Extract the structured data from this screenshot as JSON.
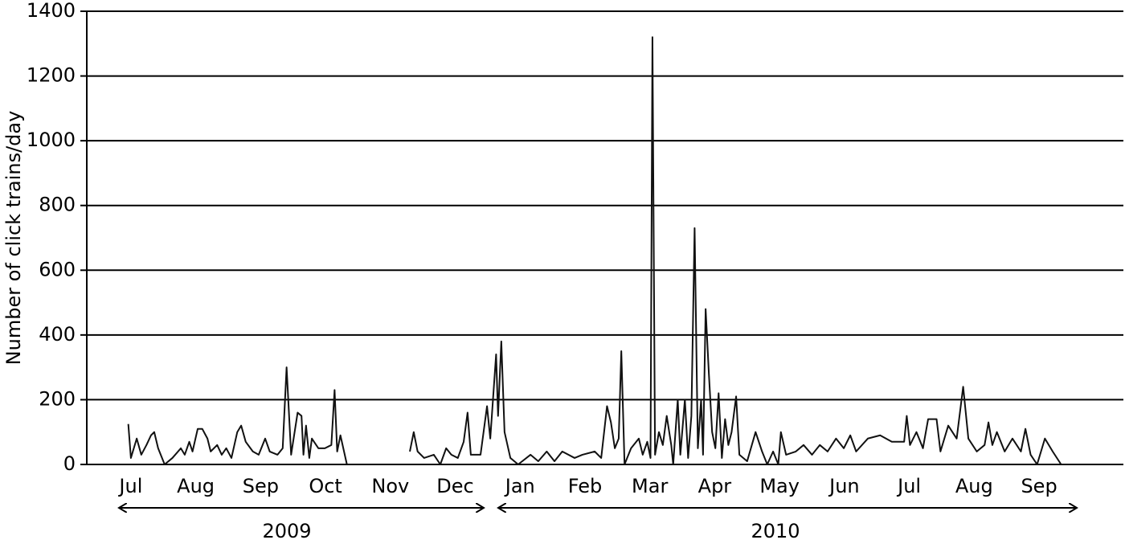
{
  "chart_data": {
    "type": "line",
    "y_label": "Number of click trains/day",
    "annotations": [
      "2009",
      "2010"
    ],
    "xlim": [
      -0.68,
      15.3
    ],
    "xticks": [
      {
        "value": 0,
        "label": "Jul"
      },
      {
        "value": 1,
        "label": "Aug"
      },
      {
        "value": 2,
        "label": "Sep"
      },
      {
        "value": 3,
        "label": "Oct"
      },
      {
        "value": 4,
        "label": "Nov"
      },
      {
        "value": 5,
        "label": "Dec"
      },
      {
        "value": 6,
        "label": "Jan"
      },
      {
        "value": 7,
        "label": "Feb"
      },
      {
        "value": 8,
        "label": "Mar"
      },
      {
        "value": 9,
        "label": "Apr"
      },
      {
        "value": 10,
        "label": "May"
      },
      {
        "value": 11,
        "label": "Jun"
      },
      {
        "value": 12,
        "label": "Jul"
      },
      {
        "value": 13,
        "label": "Aug"
      },
      {
        "value": 14,
        "label": "Sep"
      }
    ],
    "ylim": [
      0,
      1400
    ],
    "yticks": [
      0,
      200,
      400,
      600,
      800,
      1000,
      1200,
      1400
    ],
    "grid": true,
    "x": [
      -0.04,
      0,
      0.09,
      0.16,
      0.24,
      0.31,
      0.36,
      0.42,
      0.52,
      0.64,
      0.77,
      0.83,
      0.9,
      0.95,
      1.03,
      1.1,
      1.18,
      1.23,
      1.33,
      1.4,
      1.47,
      1.55,
      1.64,
      1.7,
      1.77,
      1.88,
      1.97,
      2.07,
      2.14,
      2.26,
      2.34,
      2.4,
      2.47,
      2.57,
      2.63,
      2.66,
      2.7,
      2.75,
      2.79,
      2.89,
      2.99,
      3.09,
      3.14,
      3.18,
      3.23,
      3.33,
      3.8,
      4.3,
      4.36,
      4.42,
      4.52,
      4.67,
      4.77,
      4.86,
      4.94,
      5.04,
      5.13,
      5.19,
      5.24,
      5.39,
      5.49,
      5.54,
      5.63,
      5.66,
      5.71,
      5.76,
      5.85,
      5.97,
      6.16,
      6.28,
      6.41,
      6.53,
      6.65,
      6.84,
      6.96,
      7.15,
      7.25,
      7.34,
      7.4,
      7.46,
      7.52,
      7.56,
      7.61,
      7.71,
      7.83,
      7.89,
      7.96,
      8.01,
      8.04,
      8.08,
      8.14,
      8.2,
      8.26,
      8.33,
      8.36,
      8.43,
      8.47,
      8.54,
      8.59,
      8.64,
      8.69,
      8.74,
      8.79,
      8.82,
      8.86,
      8.91,
      8.96,
      9.01,
      9.06,
      9.11,
      9.16,
      9.21,
      9.26,
      9.33,
      9.38,
      9.5,
      9.63,
      9.73,
      9.81,
      9.9,
      9.98,
      10.02,
      10.1,
      10.25,
      10.37,
      10.5,
      10.62,
      10.74,
      10.87,
      10.99,
      11.09,
      11.18,
      11.36,
      11.55,
      11.73,
      11.92,
      11.96,
      12.01,
      12.11,
      12.21,
      12.29,
      12.42,
      12.48,
      12.6,
      12.73,
      12.83,
      12.91,
      13.04,
      13.16,
      13.22,
      13.28,
      13.35,
      13.47,
      13.59,
      13.72,
      13.79,
      13.87,
      13.97,
      14.09,
      14.21,
      14.34
    ],
    "series": [
      {
        "color": "#111111",
        "values": [
          125,
          20,
          80,
          30,
          60,
          90,
          100,
          50,
          0,
          20,
          50,
          30,
          70,
          40,
          110,
          110,
          80,
          40,
          60,
          30,
          50,
          20,
          100,
          120,
          70,
          40,
          30,
          80,
          40,
          30,
          50,
          300,
          30,
          160,
          150,
          30,
          120,
          20,
          80,
          50,
          50,
          60,
          230,
          40,
          90,
          0,
          null,
          40,
          100,
          40,
          20,
          30,
          0,
          50,
          30,
          20,
          70,
          160,
          30,
          30,
          180,
          80,
          340,
          150,
          380,
          100,
          20,
          0,
          30,
          10,
          40,
          10,
          40,
          20,
          30,
          40,
          20,
          180,
          130,
          50,
          80,
          350,
          0,
          50,
          80,
          30,
          70,
          20,
          1320,
          30,
          100,
          60,
          150,
          60,
          0,
          200,
          30,
          200,
          20,
          150,
          730,
          50,
          200,
          30,
          480,
          280,
          100,
          50,
          220,
          20,
          140,
          60,
          100,
          210,
          30,
          10,
          100,
          40,
          0,
          40,
          0,
          100,
          30,
          40,
          60,
          30,
          60,
          40,
          80,
          50,
          90,
          40,
          80,
          90,
          70,
          70,
          150,
          60,
          100,
          50,
          140,
          140,
          40,
          120,
          80,
          240,
          80,
          40,
          60,
          130,
          60,
          100,
          40,
          80,
          40,
          110,
          30,
          0,
          80,
          40,
          0
        ]
      }
    ]
  }
}
